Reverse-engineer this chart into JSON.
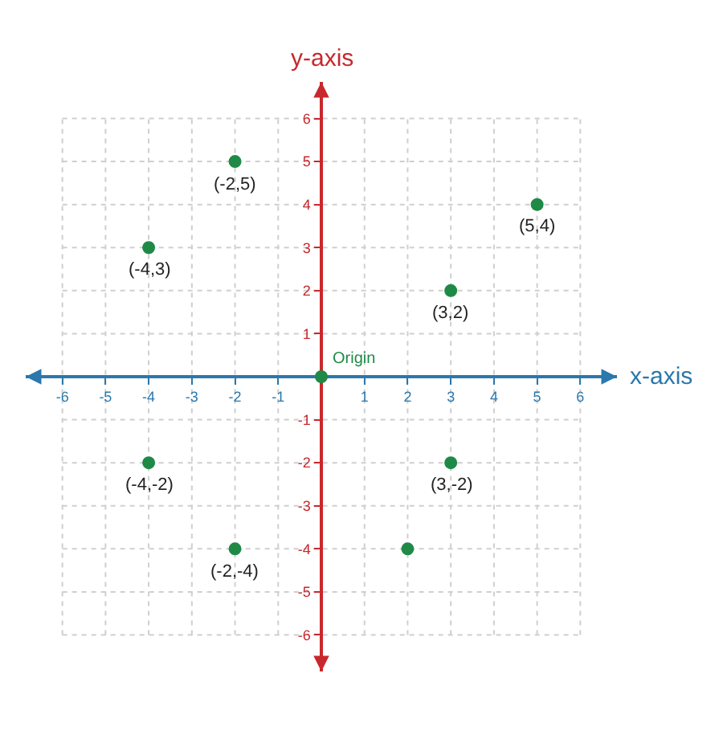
{
  "chart_data": {
    "type": "scatter",
    "xlabel": "x-axis",
    "ylabel": "y-axis",
    "x": [
      -2,
      -4,
      5,
      3,
      0,
      -4,
      -2,
      3,
      2
    ],
    "values": [
      5,
      3,
      4,
      2,
      0,
      -2,
      -4,
      -2,
      -4
    ],
    "color": "#1e8a46",
    "marker": "circle",
    "xlim": [
      -6.85,
      6.85
    ],
    "ylim": [
      -6.85,
      6.85
    ],
    "xticks": [
      -6,
      -5,
      -4,
      -3,
      -2,
      -1,
      1,
      2,
      3,
      4,
      5,
      6
    ],
    "yticks": [
      -6,
      -5,
      -4,
      -3,
      -2,
      -1,
      1,
      2,
      3,
      4,
      5,
      6
    ],
    "grid": true,
    "annotations": [
      {
        "text": "(-2,5)",
        "x": -2,
        "y": 5
      },
      {
        "text": "(-4,3)",
        "x": -4,
        "y": 3
      },
      {
        "text": "(5,4)",
        "x": 5,
        "y": 4
      },
      {
        "text": "(3,2)",
        "x": 3,
        "y": 2
      },
      {
        "text": "Origin",
        "x": 0,
        "y": 0
      },
      {
        "text": "(-4,-2)",
        "x": -4,
        "y": -2
      },
      {
        "text": "(-2,-4)",
        "x": -2,
        "y": -4
      },
      {
        "text": "(3,-2)",
        "x": 3,
        "y": -2
      }
    ]
  }
}
